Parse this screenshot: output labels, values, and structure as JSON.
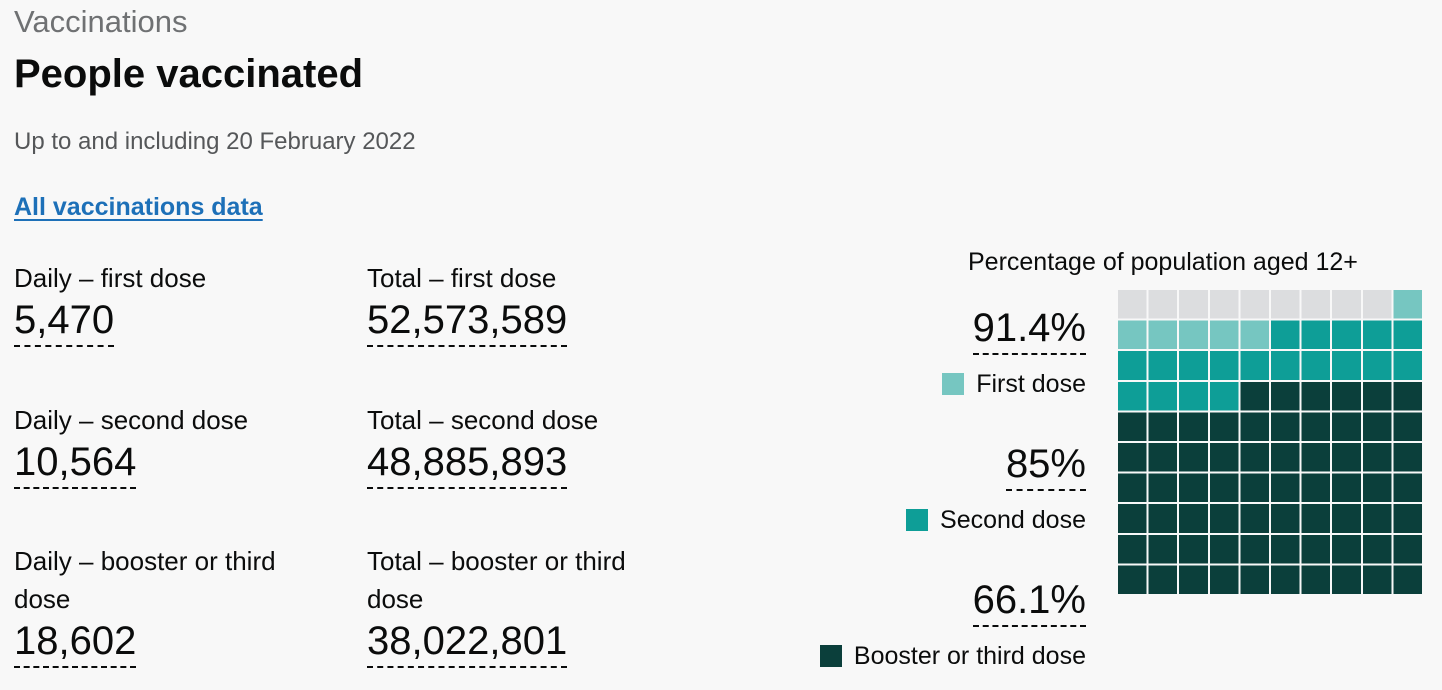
{
  "header": {
    "caption": "Vaccinations",
    "title": "People vaccinated",
    "subtitle": "Up to and including 20 February 2022",
    "link_label": "All vaccinations data"
  },
  "metrics": [
    {
      "label": "Daily – first dose",
      "value": "5,470"
    },
    {
      "label": "Total – first dose",
      "value": "52,573,589"
    },
    {
      "label": "Daily – second dose",
      "value": "10,564"
    },
    {
      "label": "Total – second dose",
      "value": "48,885,893"
    },
    {
      "label": "Daily – booster or third dose",
      "value": "18,602"
    },
    {
      "label": "Total – booster or third dose",
      "value": "38,022,801"
    }
  ],
  "chart": {
    "title": "Percentage of population aged 12+",
    "percentages": [
      {
        "value": "91.4%",
        "legend": "First dose",
        "color": "#76c6c1"
      },
      {
        "value": "85%",
        "legend": "Second dose",
        "color": "#0e9e97"
      },
      {
        "value": "66.1%",
        "legend": "Booster or third dose",
        "color": "#0b3f3b"
      }
    ],
    "empty_color": "#dcdddf"
  },
  "chart_data": {
    "type": "waffle",
    "title": "Percentage of population aged 12+",
    "series": [
      {
        "name": "First dose",
        "value": 91.4
      },
      {
        "name": "Second dose",
        "value": 85
      },
      {
        "name": "Booster or third dose",
        "value": 66.1
      }
    ]
  }
}
